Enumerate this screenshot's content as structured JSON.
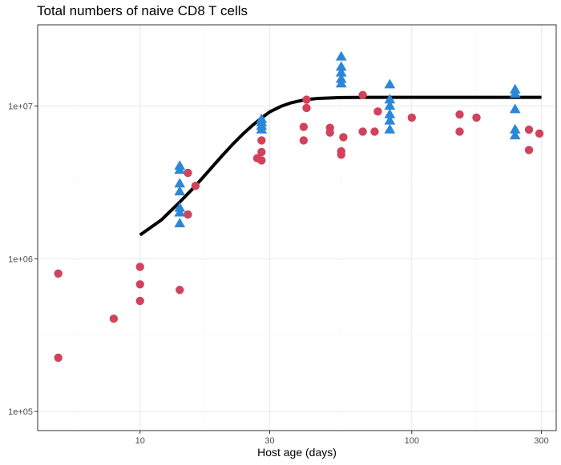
{
  "chart_data": {
    "type": "scatter",
    "title": "Total numbers of naive CD8 T cells",
    "xlabel": "Host age (days)",
    "ylabel": "",
    "x_scale": "log",
    "y_scale": "log",
    "xlim": [
      4.2,
      340
    ],
    "ylim": [
      75000,
      34000000
    ],
    "x_ticks": [
      {
        "value": 10,
        "label": "10"
      },
      {
        "value": 30,
        "label": "30"
      },
      {
        "value": 100,
        "label": "100"
      },
      {
        "value": 300,
        "label": "300"
      }
    ],
    "y_ticks": [
      {
        "value": 100000,
        "label": "1e+05"
      },
      {
        "value": 1000000,
        "label": "1e+06"
      },
      {
        "value": 10000000,
        "label": "1e+07"
      }
    ],
    "grid": true,
    "colors": {
      "circle_series": "#d1435b",
      "triangle_series": "#2b87d8",
      "fit_line": "#000000",
      "grid_major": "#ebebeb",
      "grid_minor": "#f5f5f5",
      "panel_border": "#333333"
    },
    "series": [
      {
        "marker": "circle",
        "points": [
          [
            5,
            800000
          ],
          [
            5,
            225000
          ],
          [
            8,
            405000
          ],
          [
            10,
            885000
          ],
          [
            10,
            680000
          ],
          [
            10,
            530000
          ],
          [
            14,
            625000
          ],
          [
            15,
            3650000
          ],
          [
            15,
            1950000
          ],
          [
            16,
            3000000
          ],
          [
            27,
            4550000
          ],
          [
            28,
            4400000
          ],
          [
            28,
            5000000
          ],
          [
            28,
            5950000
          ],
          [
            40,
            7300000
          ],
          [
            40,
            5950000
          ],
          [
            41,
            11000000
          ],
          [
            41,
            9700000
          ],
          [
            50,
            7200000
          ],
          [
            50,
            6700000
          ],
          [
            55,
            5050000
          ],
          [
            55,
            4800000
          ],
          [
            56,
            6250000
          ],
          [
            66,
            11800000
          ],
          [
            66,
            6800000
          ],
          [
            73,
            6800000
          ],
          [
            75,
            9200000
          ],
          [
            100,
            8400000
          ],
          [
            150,
            8800000
          ],
          [
            150,
            6800000
          ],
          [
            173,
            8400000
          ],
          [
            270,
            7000000
          ],
          [
            270,
            5150000
          ],
          [
            295,
            6600000
          ]
        ]
      },
      {
        "marker": "triangle",
        "points": [
          [
            14,
            4050000
          ],
          [
            14,
            3800000
          ],
          [
            14,
            3100000
          ],
          [
            14,
            2750000
          ],
          [
            14,
            2150000
          ],
          [
            14,
            2000000
          ],
          [
            14,
            1700000
          ],
          [
            28,
            8200000
          ],
          [
            28,
            7800000
          ],
          [
            28,
            7400000
          ],
          [
            28,
            7000000
          ],
          [
            55,
            21000000
          ],
          [
            55,
            18000000
          ],
          [
            55,
            16500000
          ],
          [
            55,
            15000000
          ],
          [
            55,
            14000000
          ],
          [
            83,
            13800000
          ],
          [
            83,
            11000000
          ],
          [
            83,
            10000000
          ],
          [
            83,
            8800000
          ],
          [
            83,
            8000000
          ],
          [
            83,
            7000000
          ],
          [
            240,
            12800000
          ],
          [
            240,
            12000000
          ],
          [
            240,
            9500000
          ],
          [
            240,
            7000000
          ],
          [
            240,
            6400000
          ]
        ]
      }
    ],
    "fit_line": {
      "points": [
        [
          10,
          1430000
        ],
        [
          12,
          1800000
        ],
        [
          14,
          2350000
        ],
        [
          16,
          3000000
        ],
        [
          18,
          3800000
        ],
        [
          20,
          4700000
        ],
        [
          22,
          5650000
        ],
        [
          24,
          6600000
        ],
        [
          26,
          7500000
        ],
        [
          28,
          8350000
        ],
        [
          30,
          9150000
        ],
        [
          33,
          9950000
        ],
        [
          36,
          10500000
        ],
        [
          40,
          10950000
        ],
        [
          45,
          11200000
        ],
        [
          55,
          11350000
        ],
        [
          70,
          11400000
        ],
        [
          100,
          11400000
        ],
        [
          200,
          11400000
        ],
        [
          300,
          11400000
        ]
      ]
    }
  }
}
